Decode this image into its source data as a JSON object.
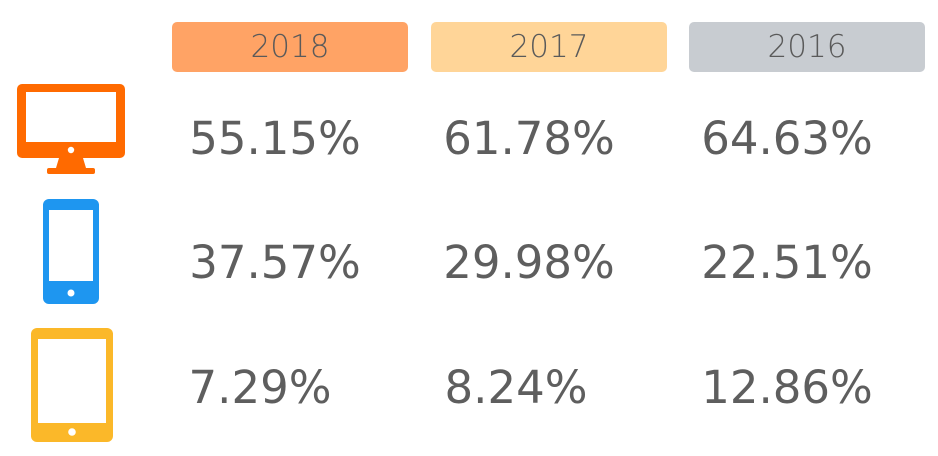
{
  "chart_data": {
    "type": "table",
    "columns": [
      {
        "label": "2018",
        "color": "#ffa365"
      },
      {
        "label": "2017",
        "color": "#ffd598"
      },
      {
        "label": "2016",
        "color": "#c8ccd1"
      }
    ],
    "rows": [
      {
        "device": "desktop-icon",
        "color": "#ff6a00",
        "values": [
          "55.15%",
          "61.78%",
          "64.63%"
        ]
      },
      {
        "device": "smartphone-icon",
        "color": "#1e96f0",
        "values": [
          "37.57%",
          "29.98%",
          "22.51%"
        ]
      },
      {
        "device": "tablet-icon",
        "color": "#fbb829",
        "values": [
          "7.29%",
          "8.24%",
          "12.86%"
        ]
      }
    ]
  }
}
